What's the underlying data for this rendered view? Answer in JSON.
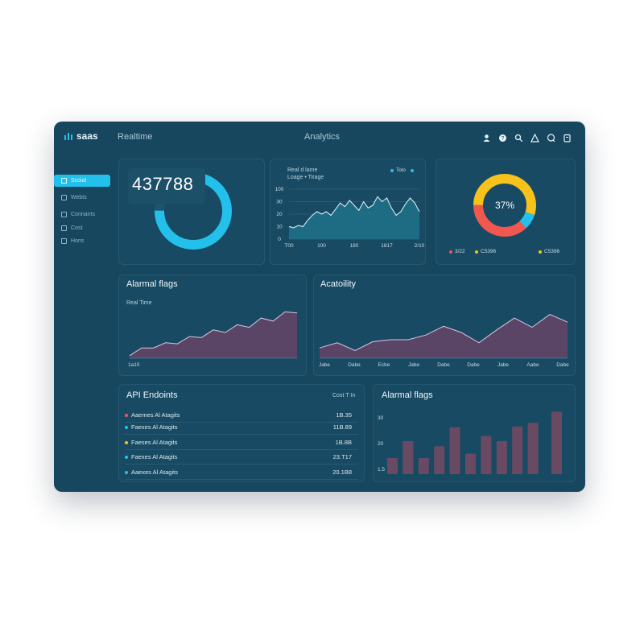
{
  "brand": {
    "name": "saas"
  },
  "header": {
    "realtime": "Realtime",
    "title": "Analytics",
    "icons": [
      "user-icon",
      "help-icon",
      "search-icon",
      "alert-icon",
      "chat-icon",
      "notes-icon"
    ]
  },
  "sidebar": {
    "items": [
      {
        "label": "Scoial",
        "active": true
      },
      {
        "label": "Webts",
        "active": false
      },
      {
        "label": "Connants",
        "active": false
      },
      {
        "label": "Cost",
        "active": false
      },
      {
        "label": "Hons",
        "active": false
      }
    ]
  },
  "kpi": {
    "value": "437788",
    "progress": 0.75
  },
  "realtime_chart": {
    "title": "Real d lame",
    "subtitle": "Loage • Tirage",
    "legend": "Tolo",
    "chart_data": {
      "type": "area",
      "x_labels": [
        "T00",
        "100",
        "180",
        "1817",
        "2/10"
      ],
      "y_ticks": [
        0,
        10,
        20,
        30,
        100
      ],
      "values": [
        10,
        9,
        11,
        10,
        15,
        19,
        22,
        20,
        22,
        19,
        24,
        29,
        26,
        31,
        27,
        23,
        30,
        25,
        27,
        34,
        30,
        33,
        25,
        19,
        22,
        28,
        33,
        29,
        22
      ]
    }
  },
  "donut": {
    "center_label": "37%",
    "chart_data": {
      "type": "pie",
      "values": [
        30,
        8,
        37,
        25
      ],
      "colors": [
        "#f6c21b",
        "#22c0ea",
        "#f0574f",
        "#f6c21b"
      ]
    },
    "legend": [
      {
        "label": "3/22",
        "color": "#f0574f"
      },
      {
        "label": "C5396",
        "color": "#f6c21b"
      },
      {
        "label": "C5396",
        "color": "#f6c21b"
      }
    ]
  },
  "alarms_area": {
    "title": "Alarmal flags",
    "subtitle": "Real Time",
    "chart_data": {
      "type": "area",
      "values": [
        5,
        20,
        20,
        30,
        28,
        42,
        40,
        55,
        50,
        65,
        60,
        78,
        72,
        90,
        88
      ],
      "x_labels": [
        "1a10"
      ]
    }
  },
  "activity": {
    "title": "Acatoility",
    "chart_data": {
      "type": "area",
      "values": [
        20,
        30,
        15,
        32,
        36,
        36,
        45,
        62,
        50,
        30,
        55,
        78,
        60,
        85,
        70
      ],
      "x_labels": [
        "Jabe",
        "Dabe",
        "Ecbe",
        "Jabe",
        "Dabe",
        "Dabe",
        "Jabe",
        "Aabe",
        "Dabe"
      ]
    }
  },
  "endpoints": {
    "title": "API Endoints",
    "col_header": "Cost T In",
    "rows": [
      {
        "label": "Aaemes Al Atagits",
        "value": "1B.35",
        "color": "#e05a72"
      },
      {
        "label": "Faexes Al Atagits",
        "value": "11B.89",
        "color": "#22c0ea"
      },
      {
        "label": "Faeses Al Atagits",
        "value": "1B.8B",
        "color": "#f6c21b"
      },
      {
        "label": "Faexes Al Atagits",
        "value": "23.T17",
        "color": "#22c0ea"
      },
      {
        "label": "Aaexes Al Atagits",
        "value": "20.1B8",
        "color": "#22c0ea"
      }
    ]
  },
  "alarms_bars": {
    "title": "Alarmal flags",
    "chart_data": {
      "type": "bar",
      "y_ticks": [
        "30",
        "20",
        "1.5"
      ],
      "values": [
        22,
        45,
        22,
        38,
        64,
        28,
        52,
        45,
        65,
        70,
        85
      ]
    }
  }
}
